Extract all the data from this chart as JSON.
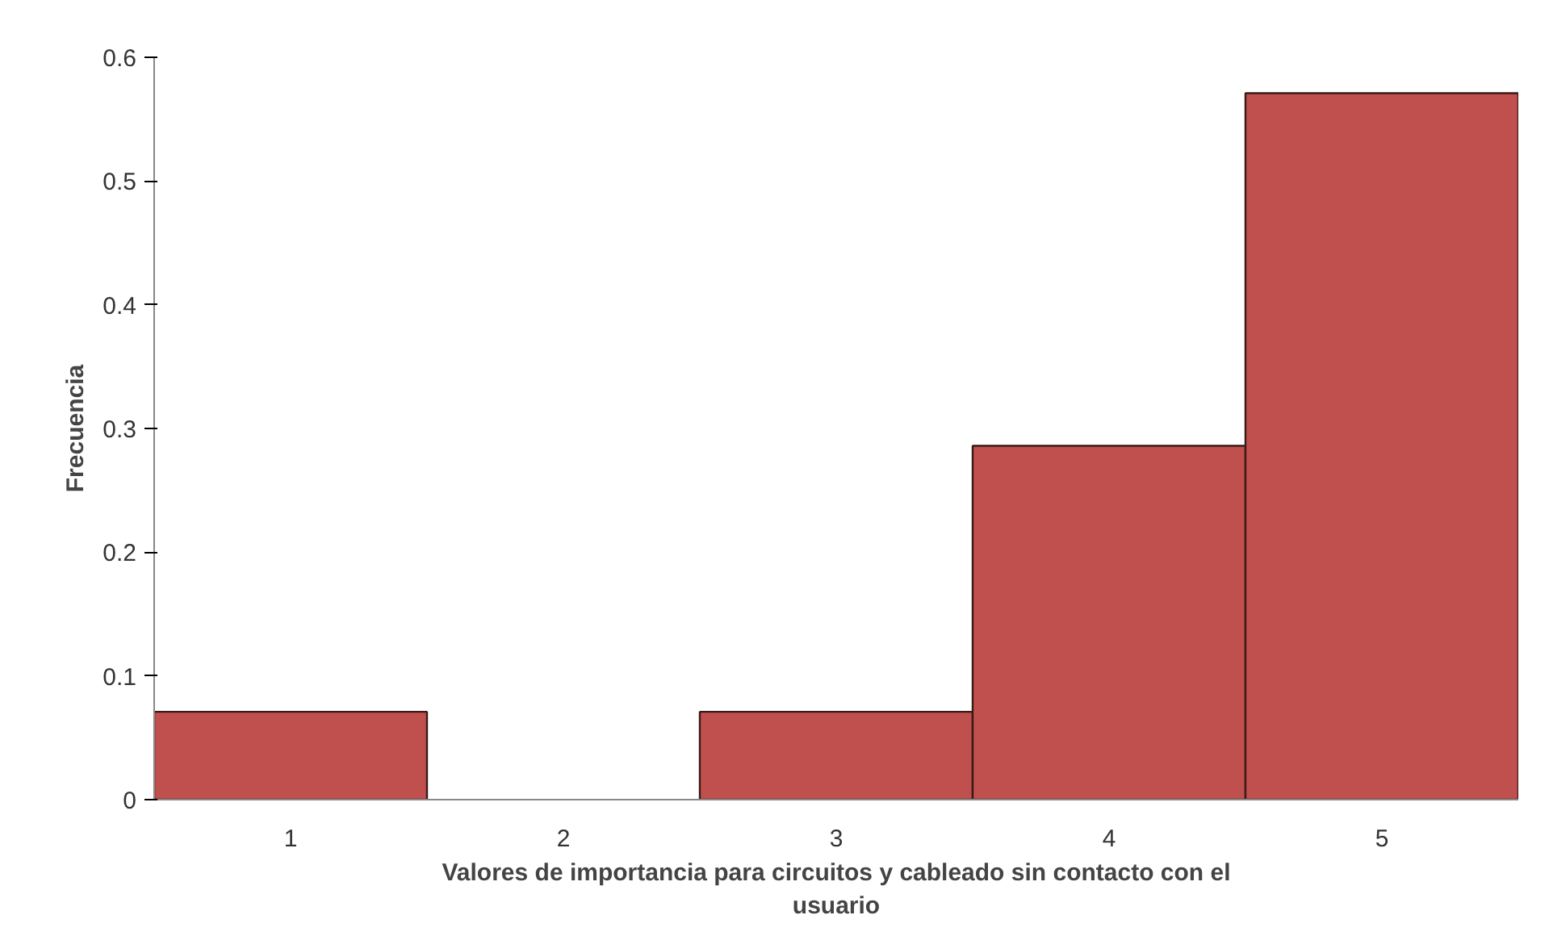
{
  "chart_data": {
    "type": "bar",
    "categories": [
      "1",
      "2",
      "3",
      "4",
      "5"
    ],
    "values": [
      0.071,
      0,
      0.071,
      0.286,
      0.571
    ],
    "color": "#c0504d",
    "xlabel": "Valores de importancia para circuitos y cableado sin contacto con el usuario",
    "ylabel": "Frecuencia",
    "ylim": [
      0,
      0.6
    ],
    "yticks": [
      {
        "value": 0,
        "label": "0"
      },
      0.1,
      0.2,
      0.3,
      0.4,
      0.5,
      0.6
    ],
    "grid": false
  }
}
